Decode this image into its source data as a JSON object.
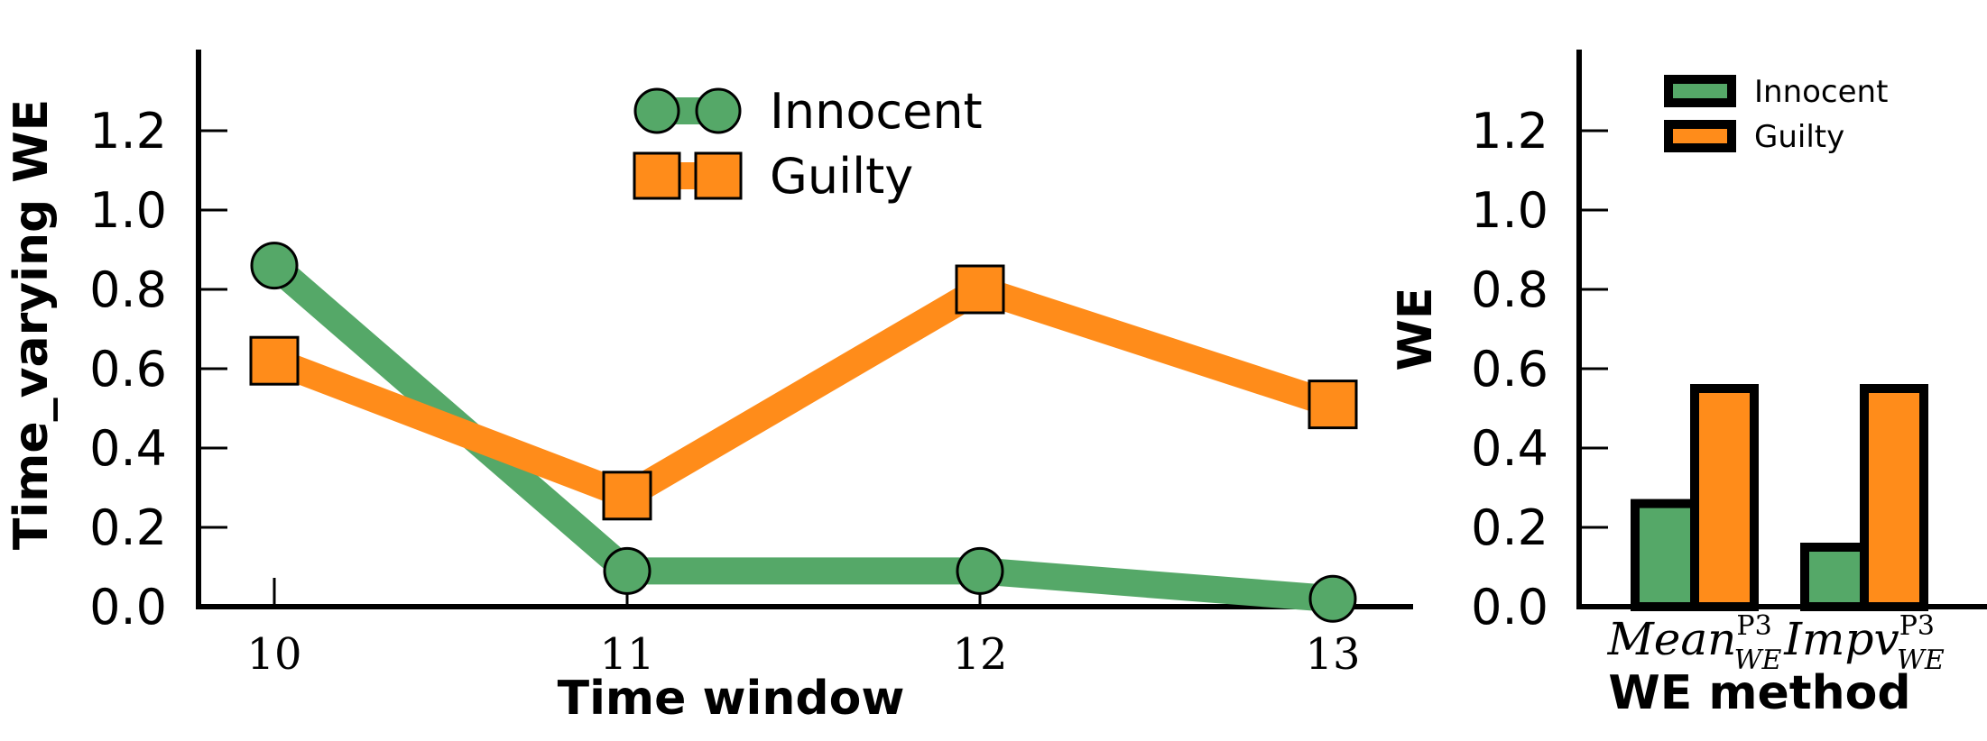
{
  "chart_data": [
    {
      "type": "line",
      "xlabel": "Time window",
      "ylabel": "Time_varying WE",
      "x": [
        10,
        11,
        12,
        13
      ],
      "xticks": [
        "10",
        "11",
        "12",
        "13"
      ],
      "ylim": [
        0,
        1.4
      ],
      "yticks": [
        "0.0",
        "0.2",
        "0.4",
        "0.6",
        "0.8",
        "1.0",
        "1.2"
      ],
      "grid": false,
      "legend_position": "top-center",
      "series": [
        {
          "name": "Innocent",
          "values": [
            0.86,
            0.09,
            0.09,
            0.02
          ],
          "color": "#55a868",
          "marker": "circle"
        },
        {
          "name": "Guilty",
          "values": [
            0.62,
            0.28,
            0.8,
            0.51
          ],
          "color": "#ff8c1a",
          "marker": "square"
        }
      ]
    },
    {
      "type": "bar",
      "xlabel": "WE method",
      "ylabel": "WE",
      "ylim": [
        0,
        1.4
      ],
      "yticks": [
        "0.0",
        "0.2",
        "0.4",
        "0.6",
        "0.8",
        "1.0",
        "1.2"
      ],
      "grid": false,
      "legend_position": "top-right",
      "categories": [
        {
          "base": "Mean",
          "sub": "WE",
          "sup": "P3"
        },
        {
          "base": "Impv",
          "sub": "WE",
          "sup": "P3"
        }
      ],
      "series": [
        {
          "name": "Innocent",
          "values": [
            0.26,
            0.15
          ],
          "color": "#55a868"
        },
        {
          "name": "Guilty",
          "values": [
            0.55,
            0.55
          ],
          "color": "#ff8c1a"
        }
      ]
    }
  ]
}
